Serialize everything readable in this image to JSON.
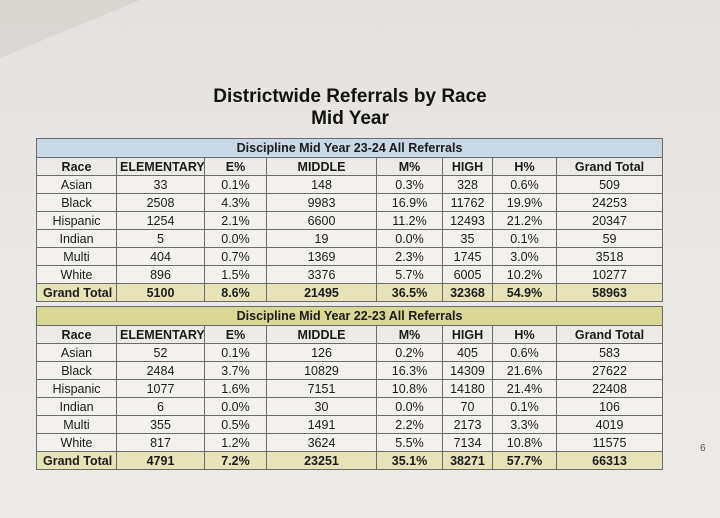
{
  "document": {
    "title_line1": "Districtwide Referrals by Race",
    "title_line2": "Mid Year",
    "page_number": "6"
  },
  "tables": [
    {
      "banner": "Discipline Mid Year 23-24 All Referrals",
      "headers": [
        "Race",
        "ELEMENTARY",
        "E%",
        "MIDDLE",
        "M%",
        "HIGH",
        "H%",
        "Grand Total"
      ],
      "rows": [
        [
          "Asian",
          "33",
          "0.1%",
          "148",
          "0.3%",
          "328",
          "0.6%",
          "509"
        ],
        [
          "Black",
          "2508",
          "4.3%",
          "9983",
          "16.9%",
          "11762",
          "19.9%",
          "24253"
        ],
        [
          "Hispanic",
          "1254",
          "2.1%",
          "6600",
          "11.2%",
          "12493",
          "21.2%",
          "20347"
        ],
        [
          "Indian",
          "5",
          "0.0%",
          "19",
          "0.0%",
          "35",
          "0.1%",
          "59"
        ],
        [
          "Multi",
          "404",
          "0.7%",
          "1369",
          "2.3%",
          "1745",
          "3.0%",
          "3518"
        ],
        [
          "White",
          "896",
          "1.5%",
          "3376",
          "5.7%",
          "6005",
          "10.2%",
          "10277"
        ]
      ],
      "total": [
        "Grand Total",
        "5100",
        "8.6%",
        "21495",
        "36.5%",
        "32368",
        "54.9%",
        "58963"
      ]
    },
    {
      "banner": "Discipline Mid Year 22-23 All Referrals",
      "headers": [
        "Race",
        "ELEMENTARY",
        "E%",
        "MIDDLE",
        "M%",
        "HIGH",
        "H%",
        "Grand Total"
      ],
      "rows": [
        [
          "Asian",
          "52",
          "0.1%",
          "126",
          "0.2%",
          "405",
          "0.6%",
          "583"
        ],
        [
          "Black",
          "2484",
          "3.7%",
          "10829",
          "16.3%",
          "14309",
          "21.6%",
          "27622"
        ],
        [
          "Hispanic",
          "1077",
          "1.6%",
          "7151",
          "10.8%",
          "14180",
          "21.4%",
          "22408"
        ],
        [
          "Indian",
          "6",
          "0.0%",
          "30",
          "0.0%",
          "70",
          "0.1%",
          "106"
        ],
        [
          "Multi",
          "355",
          "0.5%",
          "1491",
          "2.2%",
          "2173",
          "3.3%",
          "4019"
        ],
        [
          "White",
          "817",
          "1.2%",
          "3624",
          "5.5%",
          "7134",
          "10.8%",
          "11575"
        ]
      ],
      "total": [
        "Grand Total",
        "4791",
        "7.2%",
        "23251",
        "35.1%",
        "38271",
        "57.7%",
        "66313"
      ]
    }
  ]
}
